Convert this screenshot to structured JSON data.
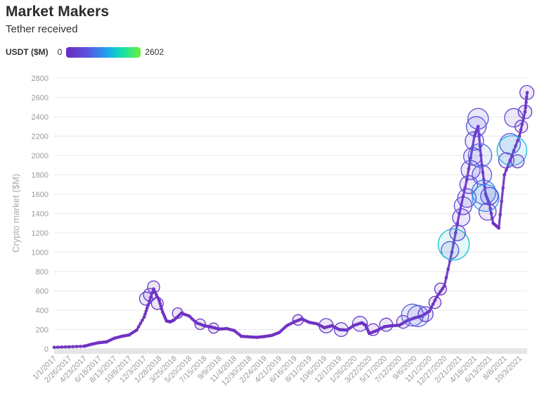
{
  "header": {
    "title": "Market Makers",
    "subtitle": "Tether received"
  },
  "legend": {
    "title": "USDT ($M)",
    "min_label": "0",
    "max_label": "2602",
    "colors": [
      "#6a2bc1",
      "#5a57e0",
      "#1fa3f0",
      "#10e0b0",
      "#6bf03a"
    ]
  },
  "chart_data": {
    "type": "scatter",
    "title": "Market Makers",
    "subtitle": "Tether received",
    "ylabel": "Crypto market ($M)",
    "xlabel": "",
    "ylim": [
      0,
      2800
    ],
    "y_ticks": [
      0,
      200,
      400,
      600,
      800,
      1000,
      1200,
      1400,
      1600,
      1800,
      2000,
      2200,
      2400,
      2600,
      2800
    ],
    "x_tick_labels": [
      "1/1/2017",
      "2/26/2017",
      "4/23/2017",
      "6/18/2017",
      "8/13/2017",
      "10/8/2017",
      "12/3/2017",
      "1/28/2018",
      "3/25/2018",
      "5/20/2018",
      "7/15/2018",
      "9/9/2018",
      "11/4/2018",
      "12/30/2018",
      "2/24/2019",
      "4/21/2019",
      "6/16/2019",
      "8/11/2019",
      "10/6/2019",
      "12/1/2019",
      "1/26/2020",
      "3/22/2020",
      "5/17/2020",
      "7/12/2020",
      "9/6/2020",
      "11/1/2020",
      "12/27/2020",
      "2/21/2021",
      "4/18/2021",
      "6/13/2021",
      "8/8/2021",
      "10/3/2021"
    ],
    "x_range": [
      "1/1/2017",
      "11/1/2021"
    ],
    "size_scale": {
      "label": "USDT ($M)",
      "min": 0,
      "max": 2602
    },
    "grid": true,
    "line_series": {
      "name": "",
      "color": "#6a2bc1",
      "points": [
        [
          "1/1/2017",
          17
        ],
        [
          "2/26/2017",
          22
        ],
        [
          "4/23/2017",
          28
        ],
        [
          "5/20/2017",
          48
        ],
        [
          "6/18/2017",
          65
        ],
        [
          "7/15/2017",
          72
        ],
        [
          "8/13/2017",
          110
        ],
        [
          "9/10/2017",
          130
        ],
        [
          "10/8/2017",
          145
        ],
        [
          "11/5/2017",
          195
        ],
        [
          "12/3/2017",
          330
        ],
        [
          "12/17/2017",
          450
        ],
        [
          "1/7/2018",
          620
        ],
        [
          "1/28/2018",
          500
        ],
        [
          "2/10/2018",
          380
        ],
        [
          "2/24/2018",
          290
        ],
        [
          "3/10/2018",
          280
        ],
        [
          "3/25/2018",
          300
        ],
        [
          "4/21/2018",
          370
        ],
        [
          "5/20/2018",
          340
        ],
        [
          "6/16/2018",
          270
        ],
        [
          "7/15/2018",
          240
        ],
        [
          "8/12/2018",
          225
        ],
        [
          "9/9/2018",
          205
        ],
        [
          "10/7/2018",
          210
        ],
        [
          "11/4/2018",
          190
        ],
        [
          "12/1/2018",
          130
        ],
        [
          "12/30/2018",
          125
        ],
        [
          "1/27/2019",
          120
        ],
        [
          "2/24/2019",
          128
        ],
        [
          "3/24/2019",
          140
        ],
        [
          "4/21/2019",
          170
        ],
        [
          "5/19/2019",
          240
        ],
        [
          "6/16/2019",
          280
        ],
        [
          "7/14/2019",
          310
        ],
        [
          "8/11/2019",
          275
        ],
        [
          "9/8/2019",
          260
        ],
        [
          "10/6/2019",
          220
        ],
        [
          "11/3/2019",
          240
        ],
        [
          "12/1/2019",
          200
        ],
        [
          "12/29/2019",
          195
        ],
        [
          "1/26/2020",
          245
        ],
        [
          "2/23/2020",
          270
        ],
        [
          "3/8/2020",
          245
        ],
        [
          "3/22/2020",
          160
        ],
        [
          "4/19/2020",
          190
        ],
        [
          "5/17/2020",
          230
        ],
        [
          "6/14/2020",
          240
        ],
        [
          "7/12/2020",
          245
        ],
        [
          "8/9/2020",
          290
        ],
        [
          "9/6/2020",
          320
        ],
        [
          "10/4/2020",
          340
        ],
        [
          "11/1/2020",
          390
        ],
        [
          "11/29/2020",
          540
        ],
        [
          "12/27/2020",
          650
        ],
        [
          "1/24/2021",
          1000
        ],
        [
          "2/21/2021",
          1400
        ],
        [
          "3/21/2021",
          1750
        ],
        [
          "4/18/2021",
          2200
        ],
        [
          "5/2/2021",
          2300
        ],
        [
          "5/16/2021",
          1900
        ],
        [
          "5/30/2021",
          1600
        ],
        [
          "6/13/2021",
          1500
        ],
        [
          "6/27/2021",
          1300
        ],
        [
          "7/18/2021",
          1250
        ],
        [
          "8/8/2021",
          1800
        ],
        [
          "9/5/2021",
          2000
        ],
        [
          "10/3/2021",
          2200
        ],
        [
          "10/24/2021",
          2450
        ],
        [
          "11/1/2021",
          2650
        ]
      ]
    },
    "bubbles": [
      {
        "x": "12/10/2017",
        "y": 520,
        "v": 180
      },
      {
        "x": "12/24/2017",
        "y": 560,
        "v": 160
      },
      {
        "x": "1/7/2018",
        "y": 640,
        "v": 140
      },
      {
        "x": "1/21/2018",
        "y": 470,
        "v": 130
      },
      {
        "x": "4/7/2018",
        "y": 370,
        "v": 90
      },
      {
        "x": "6/30/2018",
        "y": 255,
        "v": 90
      },
      {
        "x": "8/19/2018",
        "y": 215,
        "v": 80
      },
      {
        "x": "6/30/2019",
        "y": 300,
        "v": 90
      },
      {
        "x": "10/13/2019",
        "y": 240,
        "v": 230
      },
      {
        "x": "12/8/2019",
        "y": 200,
        "v": 210
      },
      {
        "x": "2/16/2020",
        "y": 260,
        "v": 260
      },
      {
        "x": "4/5/2020",
        "y": 200,
        "v": 130
      },
      {
        "x": "5/24/2020",
        "y": 250,
        "v": 180
      },
      {
        "x": "7/26/2020",
        "y": 280,
        "v": 170
      },
      {
        "x": "8/30/2020",
        "y": 350,
        "v": 720
      },
      {
        "x": "9/20/2020",
        "y": 340,
        "v": 650
      },
      {
        "x": "10/18/2020",
        "y": 360,
        "v": 260
      },
      {
        "x": "11/22/2020",
        "y": 480,
        "v": 140
      },
      {
        "x": "12/13/2020",
        "y": 620,
        "v": 130
      },
      {
        "x": "1/17/2021",
        "y": 1020,
        "v": 410
      },
      {
        "x": "1/31/2021",
        "y": 1080,
        "v": 1650
      },
      {
        "x": "2/14/2021",
        "y": 1200,
        "v": 300
      },
      {
        "x": "2/28/2021",
        "y": 1360,
        "v": 390
      },
      {
        "x": "3/7/2021",
        "y": 1480,
        "v": 420
      },
      {
        "x": "3/21/2021",
        "y": 1560,
        "v": 470
      },
      {
        "x": "3/28/2021",
        "y": 1700,
        "v": 420
      },
      {
        "x": "4/4/2021",
        "y": 1850,
        "v": 500
      },
      {
        "x": "4/11/2021",
        "y": 1990,
        "v": 420
      },
      {
        "x": "4/18/2021",
        "y": 2150,
        "v": 460
      },
      {
        "x": "4/25/2021",
        "y": 2300,
        "v": 560
      },
      {
        "x": "5/2/2021",
        "y": 2380,
        "v": 610
      },
      {
        "x": "5/9/2021",
        "y": 2000,
        "v": 850
      },
      {
        "x": "5/16/2021",
        "y": 1800,
        "v": 530
      },
      {
        "x": "5/23/2021",
        "y": 1620,
        "v": 900
      },
      {
        "x": "5/30/2021",
        "y": 1560,
        "v": 1150
      },
      {
        "x": "6/6/2021",
        "y": 1420,
        "v": 380
      },
      {
        "x": "6/13/2021",
        "y": 1580,
        "v": 400
      },
      {
        "x": "8/15/2021",
        "y": 1950,
        "v": 280
      },
      {
        "x": "8/29/2021",
        "y": 2120,
        "v": 620
      },
      {
        "x": "9/5/2021",
        "y": 2050,
        "v": 1500
      },
      {
        "x": "9/12/2021",
        "y": 2390,
        "v": 460
      },
      {
        "x": "9/26/2021",
        "y": 1940,
        "v": 180
      },
      {
        "x": "10/10/2021",
        "y": 2300,
        "v": 160
      },
      {
        "x": "10/24/2021",
        "y": 2450,
        "v": 200
      },
      {
        "x": "10/31/2021",
        "y": 2650,
        "v": 220
      }
    ]
  }
}
